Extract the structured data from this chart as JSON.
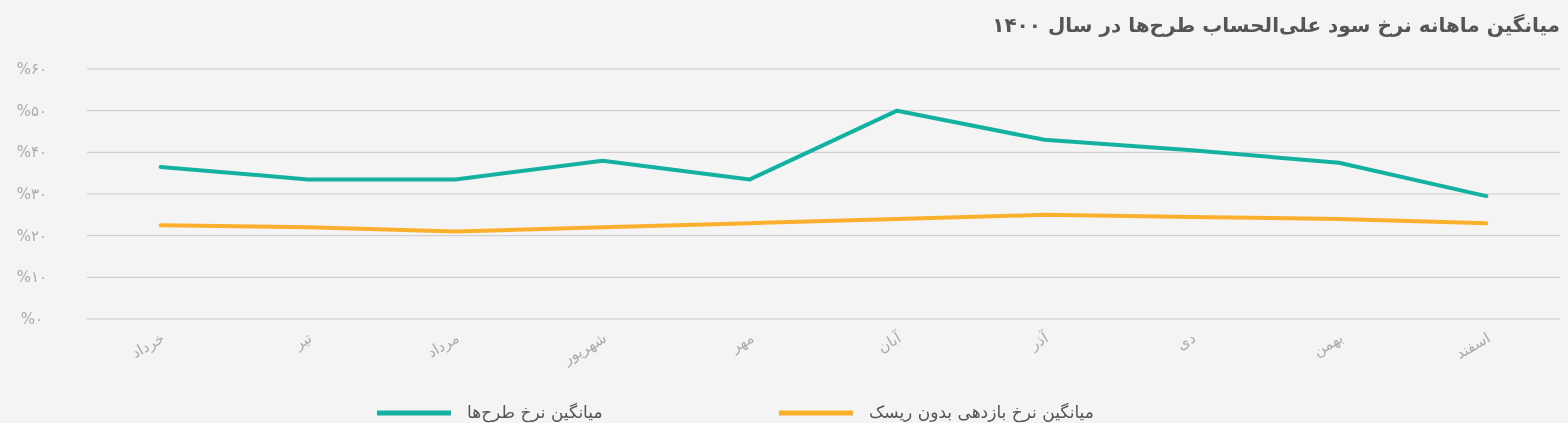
{
  "chart_data": {
    "type": "line",
    "title": "میانگین ماهانه نرخ سود علی‌الحساب طرح‌ها در سال ۱۴۰۰",
    "categories": [
      "خرداد",
      "تیر",
      "مرداد",
      "شهریور",
      "مهر",
      "آبان",
      "آذر",
      "دی",
      "بهمن",
      "اسفند"
    ],
    "series": [
      {
        "name": "میانگین نرخ طرح‌ها",
        "color": "#14b1a0",
        "values": [
          36.5,
          33.5,
          33.5,
          38,
          33.5,
          50,
          43,
          40.5,
          37.5,
          29.5
        ]
      },
      {
        "name": "میانگین نرخ بازدهی بدون ریسک",
        "color": "#fbb02d",
        "values": [
          22.5,
          22,
          21,
          22,
          23,
          24,
          25,
          24.5,
          24,
          23
        ]
      }
    ],
    "ylim": [
      0,
      60
    ],
    "yticks": [
      {
        "value": 0,
        "label": "%۰"
      },
      {
        "value": 10,
        "label": "%۱۰"
      },
      {
        "value": 20,
        "label": "%۲۰"
      },
      {
        "value": 30,
        "label": "%۳۰"
      },
      {
        "value": 40,
        "label": "%۴۰"
      },
      {
        "value": 50,
        "label": "%۵۰"
      },
      {
        "value": 60,
        "label": "%۶۰"
      }
    ],
    "grid": "y",
    "legend": "bottom",
    "marker": "none",
    "line_style": "solid"
  }
}
